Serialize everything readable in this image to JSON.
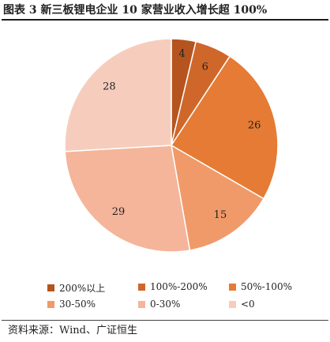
{
  "title": "图表 3 新三板锂电企业 10 家营业收入增长超 100%",
  "source": "资料来源：Wind、广证恒生",
  "chart_data": {
    "type": "pie",
    "start_angle_deg": 0,
    "direction": "clockwise",
    "slices": [
      {
        "label": "200%以上",
        "value": 4,
        "color": "#b5541e"
      },
      {
        "label": "100%-200%",
        "value": 6,
        "color": "#d0672a"
      },
      {
        "label": "50%-100%",
        "value": 26,
        "color": "#e57b34"
      },
      {
        "label": "30-50%",
        "value": 15,
        "color": "#f09a6a"
      },
      {
        "label": "0-30%",
        "value": 29,
        "color": "#f4b59a"
      },
      {
        "label": "<0",
        "value": 28,
        "color": "#f6cdbd"
      }
    ],
    "legend_placement": "bottom"
  }
}
